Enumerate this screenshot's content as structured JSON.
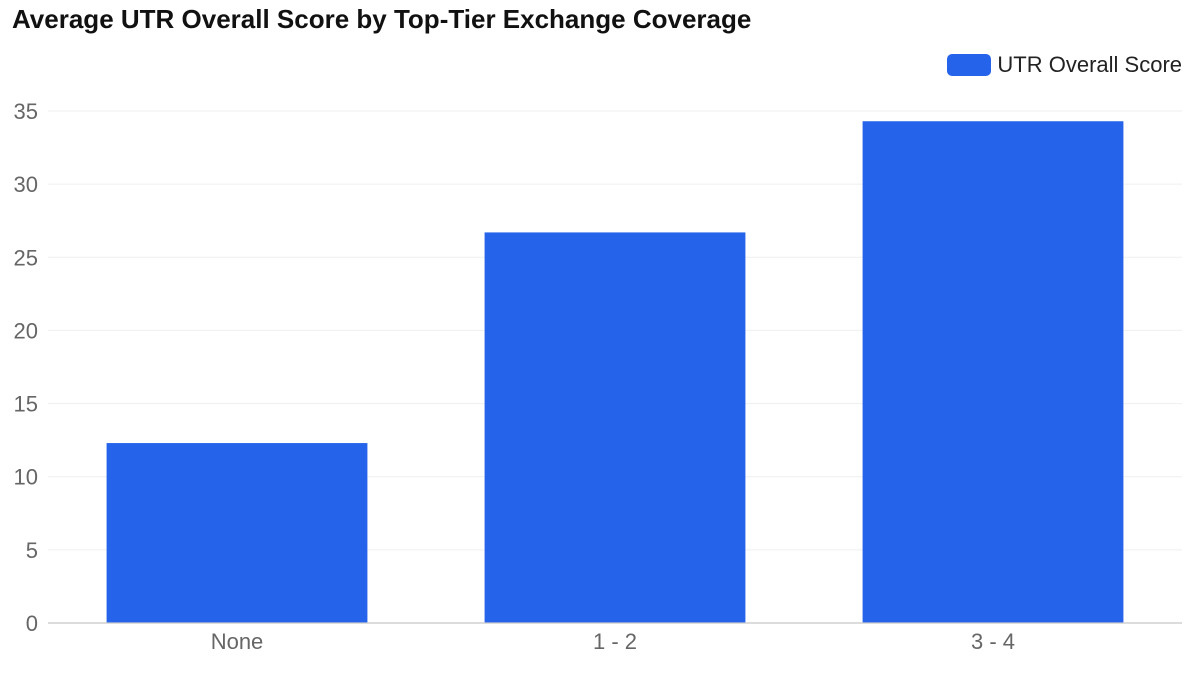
{
  "chart_data": {
    "type": "bar",
    "title": "Average UTR Overall Score by Top-Tier Exchange Coverage",
    "xlabel": "",
    "ylabel": "",
    "categories": [
      "None",
      "1 - 2",
      "3 - 4"
    ],
    "series": [
      {
        "name": "UTR Overall Score",
        "values": [
          12.3,
          26.7,
          34.3
        ],
        "color": "#2563eb"
      }
    ],
    "ylim": [
      0,
      35
    ],
    "yticks": [
      "0",
      "5",
      "10",
      "15",
      "20",
      "25",
      "30",
      "35"
    ],
    "grid": true,
    "legend_position": "top-right"
  }
}
